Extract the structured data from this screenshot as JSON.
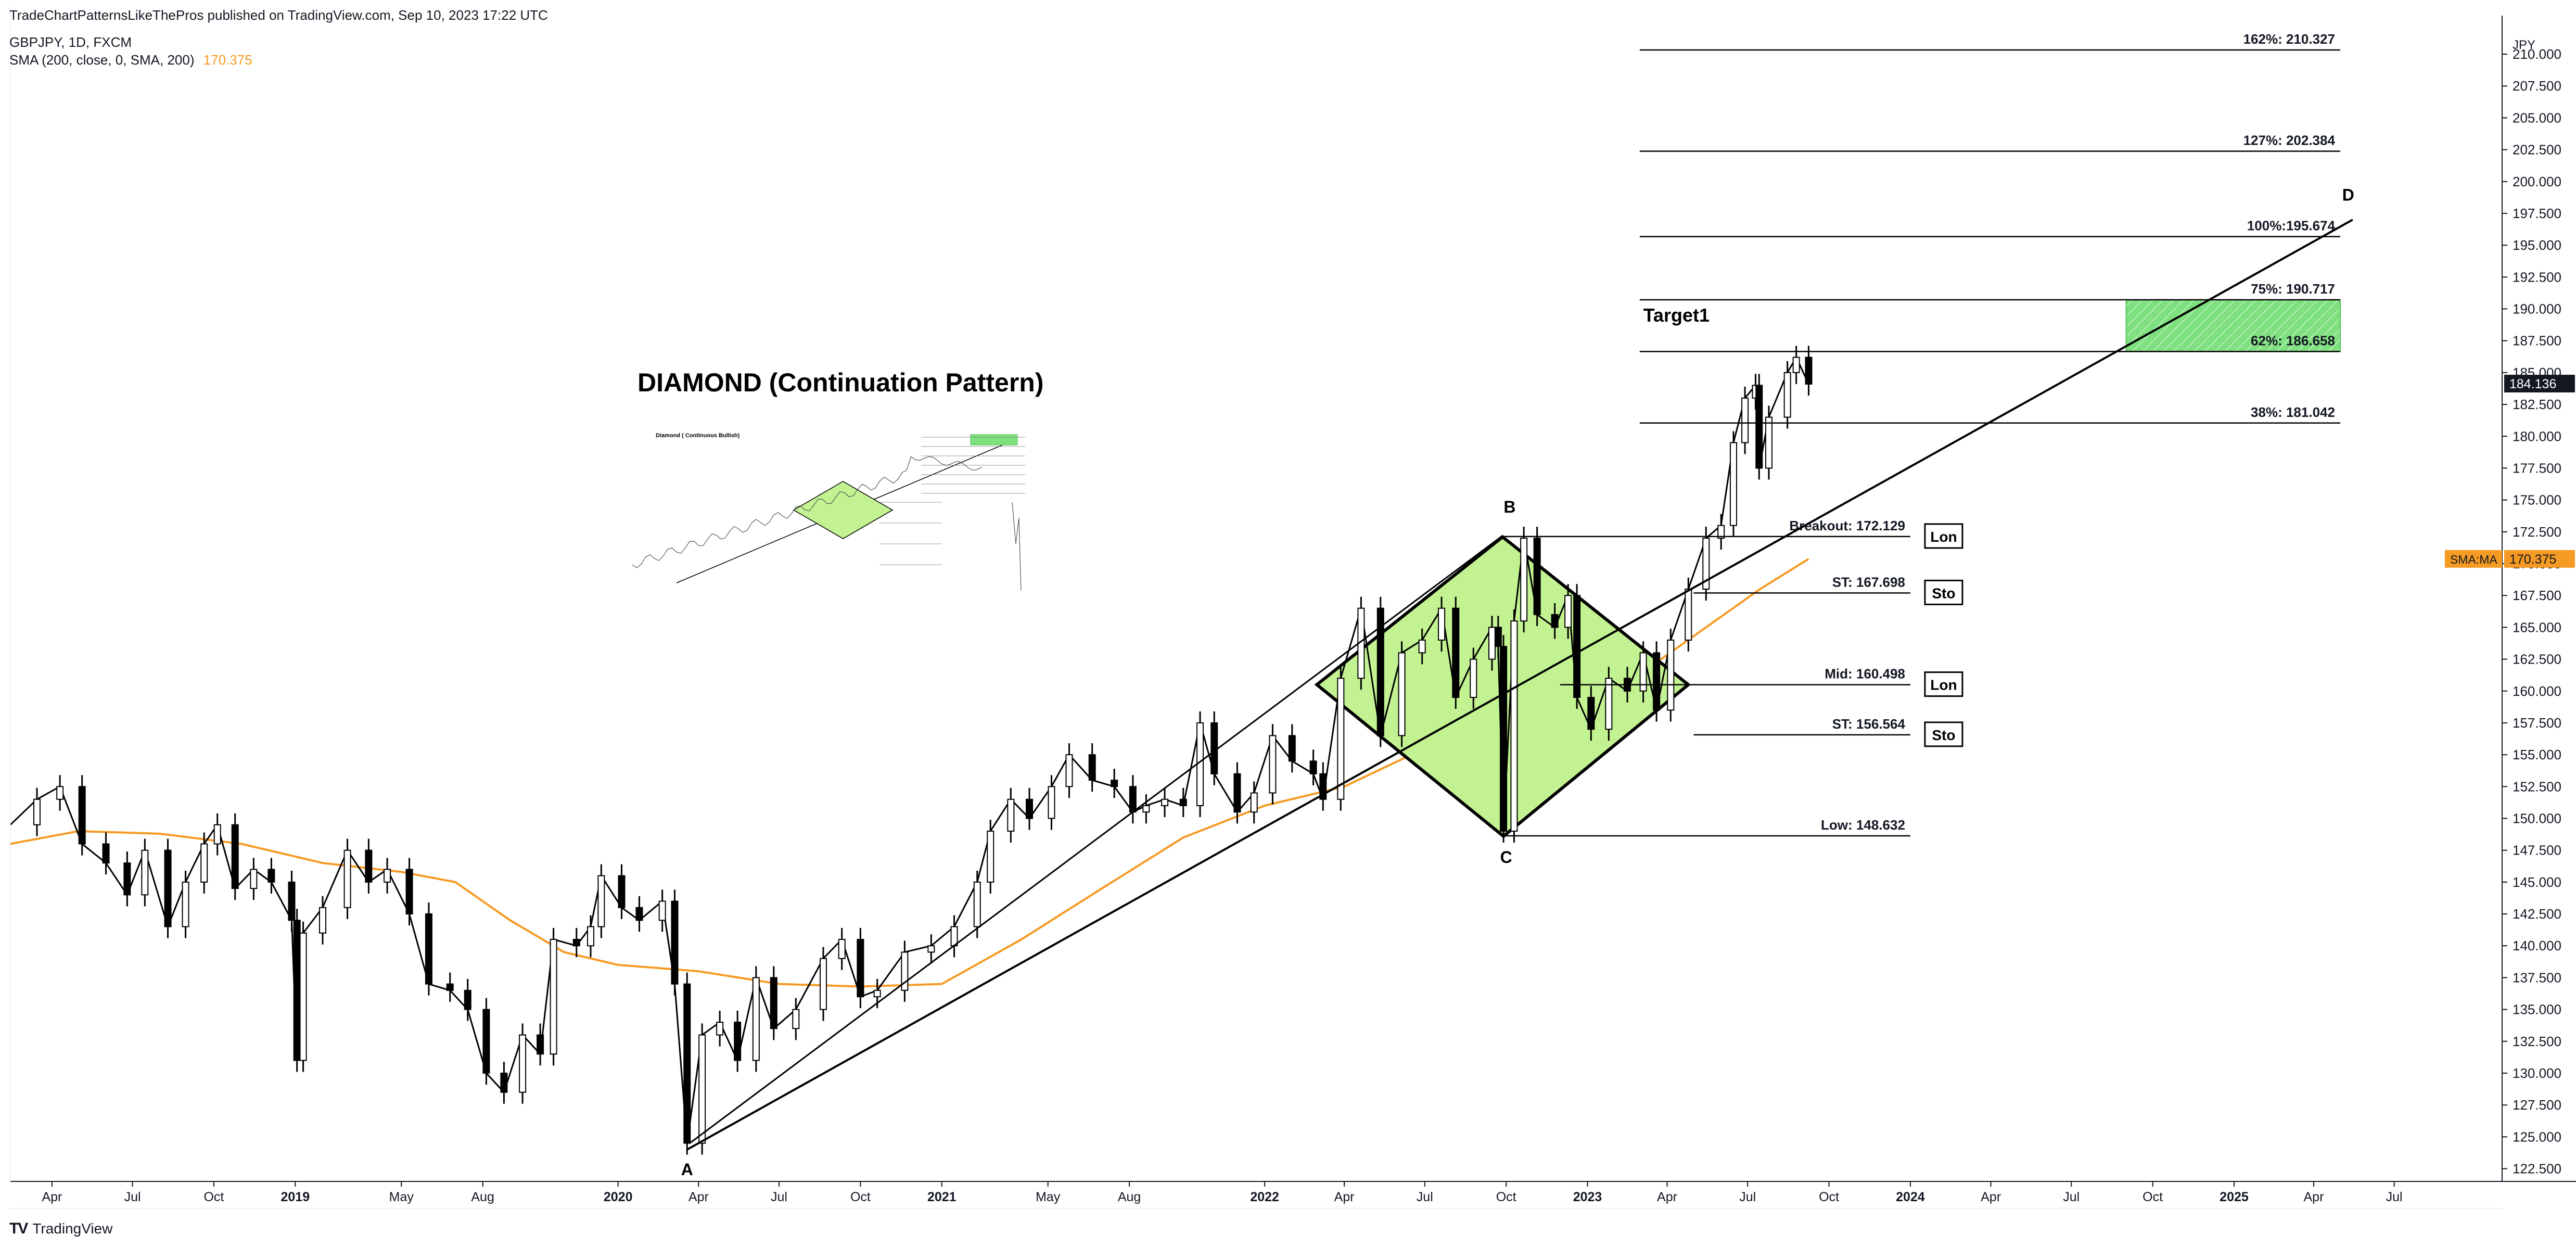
{
  "header": {
    "publish_line": "TradeChartPatternsLikeThePros published on TradingView.com, Sep 10, 2023 17:22 UTC",
    "symbol_line": "GBPJPY, 1D, FXCM",
    "sma_label": "SMA (200, close, 0, SMA, 200)",
    "sma_value": "170.375"
  },
  "footer": {
    "brand": "TradingView"
  },
  "colors": {
    "candle": "#000000",
    "sma": "#f59a23",
    "diamond_fill": "#c2f291",
    "target_zone": "#5fd35f",
    "price_tag_bg": "#131722",
    "sma_tag_bg": "#f59a23"
  },
  "chart_data": {
    "type": "line",
    "symbol": "GBPJPY",
    "timeframe": "1D",
    "currency_label": "JPY",
    "ylim": [
      121.5,
      211.8
    ],
    "y_ticks": [
      122.5,
      125,
      127.5,
      130,
      132.5,
      135,
      137.5,
      140,
      142.5,
      145,
      147.5,
      150,
      152.5,
      155,
      157.5,
      160,
      162.5,
      165,
      167.5,
      170,
      172.5,
      175,
      177.5,
      180,
      182.5,
      185,
      187.5,
      190,
      192.5,
      195,
      197.5,
      200,
      202.5,
      205,
      207.5,
      210
    ],
    "y_tick_labels": [
      "122.500",
      "125.000",
      "127.500",
      "130.000",
      "132.500",
      "135.000",
      "137.500",
      "140.000",
      "142.500",
      "145.000",
      "147.500",
      "150.000",
      "152.500",
      "155.000",
      "157.500",
      "160.000",
      "162.500",
      "165.000",
      "167.500",
      "170.000",
      "172.500",
      "175.000",
      "177.500",
      "180.000",
      "182.500",
      "185.000",
      "187.500",
      "190.000",
      "192.500",
      "195.000",
      "197.500",
      "200.000",
      "202.500",
      "205.000",
      "207.500",
      "210.000"
    ],
    "x_range": [
      "2018-02-13",
      "2025-10-31"
    ],
    "x_ticks": [
      {
        "date": "2018-04-01",
        "label": "Apr",
        "bold": false
      },
      {
        "date": "2018-07-01",
        "label": "Jul",
        "bold": false
      },
      {
        "date": "2018-10-01",
        "label": "Oct",
        "bold": false
      },
      {
        "date": "2019-01-01",
        "label": "2019",
        "bold": true
      },
      {
        "date": "2019-05-01",
        "label": "May",
        "bold": false
      },
      {
        "date": "2019-08-01",
        "label": "Aug",
        "bold": false
      },
      {
        "date": "2020-01-01",
        "label": "2020",
        "bold": true
      },
      {
        "date": "2020-04-01",
        "label": "Apr",
        "bold": false
      },
      {
        "date": "2020-07-01",
        "label": "Jul",
        "bold": false
      },
      {
        "date": "2020-10-01",
        "label": "Oct",
        "bold": false
      },
      {
        "date": "2021-01-01",
        "label": "2021",
        "bold": true
      },
      {
        "date": "2021-05-01",
        "label": "May",
        "bold": false
      },
      {
        "date": "2021-08-01",
        "label": "Aug",
        "bold": false
      },
      {
        "date": "2022-01-01",
        "label": "2022",
        "bold": true
      },
      {
        "date": "2022-04-01",
        "label": "Apr",
        "bold": false
      },
      {
        "date": "2022-07-01",
        "label": "Jul",
        "bold": false
      },
      {
        "date": "2022-10-01",
        "label": "Oct",
        "bold": false
      },
      {
        "date": "2023-01-01",
        "label": "2023",
        "bold": true
      },
      {
        "date": "2023-04-01",
        "label": "Apr",
        "bold": false
      },
      {
        "date": "2023-07-01",
        "label": "Jul",
        "bold": false
      },
      {
        "date": "2023-10-01",
        "label": "Oct",
        "bold": false
      },
      {
        "date": "2024-01-01",
        "label": "2024",
        "bold": true
      },
      {
        "date": "2024-04-01",
        "label": "Apr",
        "bold": false
      },
      {
        "date": "2024-07-01",
        "label": "Jul",
        "bold": false
      },
      {
        "date": "2024-10-01",
        "label": "Oct",
        "bold": false
      },
      {
        "date": "2025-01-01",
        "label": "2025",
        "bold": true
      },
      {
        "date": "2025-04-01",
        "label": "Apr",
        "bold": false
      },
      {
        "date": "2025-07-01",
        "label": "Jul",
        "bold": false
      }
    ],
    "series": [
      {
        "name": "GBPJPY",
        "style": "close-path",
        "points": [
          [
            "2018-02-13",
            149.5
          ],
          [
            "2018-03-15",
            151.5
          ],
          [
            "2018-04-10",
            152.5
          ],
          [
            "2018-05-05",
            148.0
          ],
          [
            "2018-06-01",
            146.5
          ],
          [
            "2018-06-25",
            144.0
          ],
          [
            "2018-07-15",
            147.5
          ],
          [
            "2018-08-10",
            141.5
          ],
          [
            "2018-08-30",
            145.0
          ],
          [
            "2018-09-20",
            148.0
          ],
          [
            "2018-10-05",
            149.5
          ],
          [
            "2018-10-25",
            144.5
          ],
          [
            "2018-11-15",
            146.0
          ],
          [
            "2018-12-05",
            145.0
          ],
          [
            "2018-12-28",
            142.0
          ],
          [
            "2019-01-03",
            131.0
          ],
          [
            "2019-01-10",
            141.0
          ],
          [
            "2019-02-01",
            143.0
          ],
          [
            "2019-03-01",
            147.5
          ],
          [
            "2019-03-25",
            145.0
          ],
          [
            "2019-04-15",
            146.0
          ],
          [
            "2019-05-10",
            142.5
          ],
          [
            "2019-06-01",
            137.0
          ],
          [
            "2019-06-25",
            136.5
          ],
          [
            "2019-07-15",
            135.0
          ],
          [
            "2019-08-05",
            130.0
          ],
          [
            "2019-08-25",
            128.5
          ],
          [
            "2019-09-15",
            133.0
          ],
          [
            "2019-10-05",
            131.5
          ],
          [
            "2019-10-20",
            140.5
          ],
          [
            "2019-11-15",
            140.0
          ],
          [
            "2019-12-01",
            141.5
          ],
          [
            "2019-12-13",
            145.5
          ],
          [
            "2020-01-05",
            143.0
          ],
          [
            "2020-01-25",
            142.0
          ],
          [
            "2020-02-20",
            143.5
          ],
          [
            "2020-03-05",
            137.0
          ],
          [
            "2020-03-19",
            124.5
          ],
          [
            "2020-04-05",
            133.0
          ],
          [
            "2020-04-25",
            134.0
          ],
          [
            "2020-05-15",
            131.0
          ],
          [
            "2020-06-05",
            137.5
          ],
          [
            "2020-06-25",
            133.5
          ],
          [
            "2020-07-20",
            135.0
          ],
          [
            "2020-08-20",
            139.0
          ],
          [
            "2020-09-10",
            140.5
          ],
          [
            "2020-10-01",
            136.0
          ],
          [
            "2020-10-20",
            136.5
          ],
          [
            "2020-11-20",
            139.5
          ],
          [
            "2020-12-20",
            140.0
          ],
          [
            "2021-01-15",
            141.5
          ],
          [
            "2021-02-10",
            145.0
          ],
          [
            "2021-02-25",
            149.0
          ],
          [
            "2021-03-20",
            151.5
          ],
          [
            "2021-04-10",
            150.0
          ],
          [
            "2021-05-05",
            152.5
          ],
          [
            "2021-05-25",
            155.0
          ],
          [
            "2021-06-20",
            153.0
          ],
          [
            "2021-07-15",
            152.5
          ],
          [
            "2021-08-05",
            150.5
          ],
          [
            "2021-08-20",
            151.0
          ],
          [
            "2021-09-10",
            151.5
          ],
          [
            "2021-10-01",
            151.0
          ],
          [
            "2021-10-20",
            157.5
          ],
          [
            "2021-11-05",
            153.5
          ],
          [
            "2021-12-01",
            150.5
          ],
          [
            "2021-12-20",
            152.0
          ],
          [
            "2022-01-10",
            156.5
          ],
          [
            "2022-02-01",
            154.5
          ],
          [
            "2022-02-25",
            153.5
          ],
          [
            "2022-03-08",
            151.5
          ],
          [
            "2022-03-28",
            161.0
          ],
          [
            "2022-04-20",
            166.5
          ],
          [
            "2022-05-12",
            156.5
          ],
          [
            "2022-06-05",
            163.0
          ],
          [
            "2022-06-28",
            164.0
          ],
          [
            "2022-07-20",
            166.5
          ],
          [
            "2022-08-05",
            159.5
          ],
          [
            "2022-08-25",
            162.5
          ],
          [
            "2022-09-15",
            165.0
          ],
          [
            "2022-09-22",
            163.5
          ],
          [
            "2022-09-28",
            149.0
          ],
          [
            "2022-10-10",
            165.5
          ],
          [
            "2022-10-21",
            172.0
          ],
          [
            "2022-11-05",
            166.0
          ],
          [
            "2022-11-25",
            165.0
          ],
          [
            "2022-12-10",
            167.5
          ],
          [
            "2022-12-20",
            159.5
          ],
          [
            "2023-01-05",
            157.0
          ],
          [
            "2023-01-25",
            161.0
          ],
          [
            "2023-02-15",
            160.0
          ],
          [
            "2023-03-05",
            163.0
          ],
          [
            "2023-03-20",
            158.5
          ],
          [
            "2023-04-05",
            164.0
          ],
          [
            "2023-04-25",
            168.0
          ],
          [
            "2023-05-15",
            172.0
          ],
          [
            "2023-06-01",
            173.0
          ],
          [
            "2023-06-15",
            179.5
          ],
          [
            "2023-06-28",
            183.0
          ],
          [
            "2023-07-10",
            184.0
          ],
          [
            "2023-07-14",
            177.5
          ],
          [
            "2023-07-25",
            181.5
          ],
          [
            "2023-08-15",
            185.0
          ],
          [
            "2023-08-25",
            186.2
          ],
          [
            "2023-09-08",
            184.1
          ]
        ]
      },
      {
        "name": "SMA (200, close, 0, SMA, 200)",
        "points": [
          [
            "2018-02-13",
            148.0
          ],
          [
            "2018-05-01",
            149.0
          ],
          [
            "2018-08-01",
            148.8
          ],
          [
            "2018-11-01",
            148.0
          ],
          [
            "2019-02-01",
            146.5
          ],
          [
            "2019-05-01",
            145.8
          ],
          [
            "2019-07-01",
            145.0
          ],
          [
            "2019-09-01",
            142.0
          ],
          [
            "2019-11-01",
            139.5
          ],
          [
            "2020-01-01",
            138.5
          ],
          [
            "2020-04-01",
            138.0
          ],
          [
            "2020-07-01",
            137.0
          ],
          [
            "2020-10-01",
            136.8
          ],
          [
            "2021-01-01",
            137.0
          ],
          [
            "2021-04-01",
            140.5
          ],
          [
            "2021-07-01",
            144.5
          ],
          [
            "2021-10-01",
            148.5
          ],
          [
            "2022-01-01",
            151.0
          ],
          [
            "2022-04-01",
            152.5
          ],
          [
            "2022-07-01",
            155.5
          ],
          [
            "2022-10-01",
            158.5
          ],
          [
            "2023-01-01",
            160.5
          ],
          [
            "2023-03-15",
            162.0
          ],
          [
            "2023-05-15",
            165.0
          ],
          [
            "2023-07-15",
            168.0
          ],
          [
            "2023-09-08",
            170.375
          ]
        ]
      }
    ],
    "current_price": "184.136",
    "sma_tag_label": "SMA:MA",
    "sma_tag_value": "170.375",
    "title_annotation": "DIAMOND (Continuation Pattern)",
    "inset_title": "Diamond ( Continuous Bullish)",
    "diamond": {
      "left": [
        "2022-03-01",
        160.5
      ],
      "top": [
        "2022-09-27",
        172.1
      ],
      "bottom": [
        "2022-09-28",
        148.6
      ],
      "right": [
        "2023-04-25",
        160.5
      ]
    },
    "point_labels": [
      {
        "text": "A",
        "at": [
          "2020-03-19",
          122.0
        ]
      },
      {
        "text": "B",
        "at": [
          "2022-10-05",
          174.0
        ]
      },
      {
        "text": "C",
        "at": [
          "2022-10-01",
          146.5
        ]
      },
      {
        "text": "D",
        "at": [
          "2025-05-10",
          198.5
        ]
      }
    ],
    "trendline": {
      "from": [
        "2020-03-19",
        124.0
      ],
      "to": [
        "2025-05-15",
        197.0
      ]
    },
    "upper_trend": {
      "from": [
        "2020-03-22",
        124.5
      ],
      "to": [
        "2022-09-27",
        172.2
      ]
    },
    "levels": [
      {
        "label": "162%: 210.327",
        "price": 210.327,
        "from": "2023-03-01",
        "to": "2025-05-01"
      },
      {
        "label": "127%: 202.384",
        "price": 202.384,
        "from": "2023-03-01",
        "to": "2025-05-01"
      },
      {
        "label": "100%:195.674",
        "price": 195.674,
        "from": "2023-03-01",
        "to": "2025-05-01"
      },
      {
        "label": "75%: 190.717",
        "price": 190.717,
        "from": "2023-03-01",
        "to": "2025-05-01"
      },
      {
        "label": "62%: 186.658",
        "price": 186.658,
        "from": "2023-03-01",
        "to": "2025-05-01"
      },
      {
        "label": "38%: 181.042",
        "price": 181.042,
        "from": "2023-03-01",
        "to": "2025-05-01"
      },
      {
        "label": "Breakout: 172.129",
        "price": 172.129,
        "from": "2022-09-27",
        "to": "2024-01-01"
      },
      {
        "label": "ST: 167.698",
        "price": 167.698,
        "from": "2023-05-01",
        "to": "2024-01-01"
      },
      {
        "label": "Mid: 160.498",
        "price": 160.498,
        "from": "2022-12-01",
        "to": "2024-01-01"
      },
      {
        "label": "ST: 156.564",
        "price": 156.564,
        "from": "2023-05-01",
        "to": "2024-01-01"
      },
      {
        "label": "Low: 148.632",
        "price": 148.632,
        "from": "2022-09-28",
        "to": "2024-01-01"
      }
    ],
    "level_boxes": [
      {
        "text": "Lon",
        "price": 172.129
      },
      {
        "text": "Sto",
        "price": 167.698
      },
      {
        "text": "Lon",
        "price": 160.498
      },
      {
        "text": "Sto",
        "price": 156.564
      }
    ],
    "target_label": "Target1",
    "target_zone": {
      "from": "2024-09-01",
      "to": "2025-05-01",
      "low": 186.658,
      "high": 190.717
    }
  }
}
